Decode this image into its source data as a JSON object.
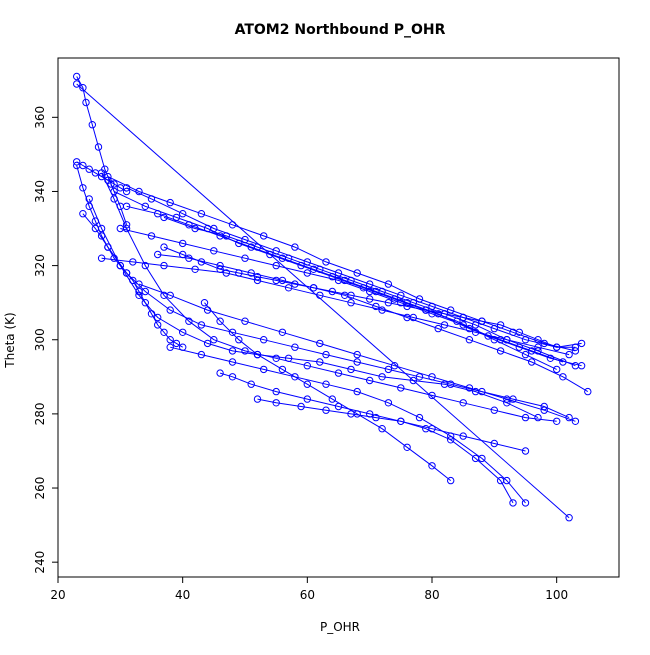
{
  "chart_data": {
    "type": "scatter",
    "title": "ATOM2 Northbound P_OHR",
    "xlabel": "P_OHR",
    "ylabel": "Theta (K)",
    "xlim": [
      20,
      110
    ],
    "ylim": [
      236,
      376
    ],
    "x_ticks": [
      20,
      40,
      60,
      80,
      100
    ],
    "y_ticks": [
      240,
      260,
      280,
      300,
      320,
      340,
      360
    ],
    "x_tick_labels": [
      "20",
      "40",
      "60",
      "80",
      "100"
    ],
    "y_tick_labels": [
      "240",
      "260",
      "280",
      "300",
      "320",
      "340",
      "360"
    ],
    "grid": false,
    "legend": "none",
    "color": "#0000ff",
    "marker": "open-circle",
    "series": [
      {
        "x": [
          23,
          24,
          24.5,
          25.5,
          26.5,
          27.5,
          28.5,
          30,
          31
        ],
        "y": [
          371,
          368,
          364,
          358,
          352,
          346,
          342,
          336,
          331
        ]
      },
      {
        "x": [
          23,
          102
        ],
        "y": [
          369,
          252
        ]
      },
      {
        "x": [
          23,
          24,
          25,
          26,
          27,
          28,
          29,
          30,
          31
        ],
        "y": [
          348,
          347,
          346,
          345,
          344,
          343,
          342,
          341,
          340
        ]
      },
      {
        "x": [
          31,
          35,
          40,
          45,
          50,
          55,
          60,
          65,
          70,
          75,
          80,
          85,
          90,
          95,
          100,
          103
        ],
        "y": [
          341,
          338,
          334,
          330,
          327,
          324,
          321,
          318,
          315,
          312,
          309,
          306,
          303,
          300,
          298,
          298
        ]
      },
      {
        "x": [
          28,
          33,
          38,
          43,
          48,
          53,
          58,
          63,
          68,
          73,
          78,
          83,
          88,
          93,
          98,
          103
        ],
        "y": [
          344,
          340,
          337,
          334,
          331,
          328,
          325,
          321,
          318,
          315,
          311,
          308,
          305,
          302,
          299,
          297
        ]
      },
      {
        "x": [
          29,
          34,
          39,
          44,
          49,
          54,
          59,
          64,
          69,
          74,
          79,
          84,
          89,
          94,
          99,
          104
        ],
        "y": [
          340,
          336,
          333,
          330,
          326,
          323,
          320,
          317,
          314,
          311,
          308,
          305,
          301,
          298,
          295,
          293
        ]
      },
      {
        "x": [
          27,
          32,
          37,
          42,
          47,
          52,
          57,
          62,
          67,
          72,
          77,
          82,
          87,
          92,
          97,
          102
        ],
        "y": [
          322,
          321,
          320,
          319,
          318,
          316,
          314,
          312,
          310,
          308,
          306,
          304,
          302,
          300,
          298,
          296
        ]
      },
      {
        "x": [
          36,
          41,
          46,
          51,
          56,
          61,
          66,
          71,
          76,
          81,
          86,
          91,
          96,
          101,
          105
        ],
        "y": [
          323,
          322,
          320,
          318,
          316,
          314,
          312,
          309,
          306,
          303,
          300,
          297,
          294,
          290,
          286
        ]
      },
      {
        "x": [
          30,
          35,
          40,
          45,
          50,
          55,
          60,
          65,
          70,
          75,
          80,
          85,
          90,
          95,
          100
        ],
        "y": [
          330,
          328,
          326,
          324,
          322,
          320,
          318,
          316,
          313,
          310,
          307,
          304,
          300,
          296,
          292
        ]
      },
      {
        "x": [
          37,
          42,
          47,
          52,
          57,
          62,
          67,
          72,
          77,
          82,
          87,
          92,
          97,
          103
        ],
        "y": [
          333,
          330,
          328,
          325,
          322,
          319,
          316,
          313,
          310,
          307,
          304,
          300,
          297,
          293
        ]
      },
      {
        "x": [
          31,
          36,
          41,
          46,
          51,
          56,
          61,
          66,
          71,
          76,
          81,
          86,
          91,
          96,
          101
        ],
        "y": [
          336,
          334,
          331,
          328,
          325,
          322,
          319,
          316,
          313,
          310,
          307,
          303,
          300,
          297,
          294
        ]
      },
      {
        "x": [
          25,
          27,
          30,
          33,
          36,
          40,
          44,
          48,
          52,
          57,
          62,
          67,
          72,
          77,
          82,
          87,
          92,
          97
        ],
        "y": [
          338,
          330,
          320,
          312,
          306,
          302,
          299,
          297,
          296,
          295,
          294,
          292,
          290,
          289,
          288,
          286,
          283,
          279
        ]
      },
      {
        "x": [
          24,
          26,
          28,
          31,
          34,
          38,
          43,
          48,
          53,
          58,
          63,
          68,
          73,
          78,
          83,
          88,
          93,
          98,
          102
        ],
        "y": [
          334,
          330,
          325,
          318,
          313,
          308,
          304,
          302,
          300,
          298,
          296,
          294,
          292,
          290,
          288,
          286,
          284,
          282,
          279
        ]
      },
      {
        "x": [
          27,
          29,
          31,
          34,
          37,
          41,
          45,
          50,
          55,
          60,
          65,
          70,
          75,
          80,
          85,
          90,
          95,
          100
        ],
        "y": [
          345,
          338,
          330,
          320,
          312,
          305,
          300,
          297,
          295,
          293,
          291,
          289,
          287,
          285,
          283,
          281,
          279,
          278
        ]
      },
      {
        "x": [
          33,
          38,
          44,
          50,
          56,
          62,
          68,
          74,
          80,
          86,
          92,
          98,
          103
        ],
        "y": [
          315,
          312,
          308,
          305,
          302,
          299,
          296,
          293,
          290,
          287,
          284,
          281,
          278
        ]
      },
      {
        "x": [
          43.5,
          46,
          49,
          52,
          56,
          60,
          64,
          68,
          72,
          76,
          80,
          83
        ],
        "y": [
          310,
          305,
          300,
          296,
          292,
          288,
          284,
          280,
          276,
          271,
          266,
          262
        ]
      },
      {
        "x": [
          38,
          43,
          48,
          53,
          58,
          63,
          68,
          73,
          78,
          83,
          88,
          92,
          95
        ],
        "y": [
          298,
          296,
          294,
          292,
          290,
          288,
          286,
          283,
          279,
          274,
          268,
          262,
          256
        ]
      },
      {
        "x": [
          46,
          48,
          51,
          55,
          60,
          65,
          70,
          75,
          80,
          85,
          90,
          95
        ],
        "y": [
          291,
          290,
          288,
          286,
          284,
          282,
          280,
          278,
          276,
          274,
          272,
          270
        ]
      },
      {
        "x": [
          52,
          55,
          59,
          63,
          67,
          71,
          75,
          79,
          83,
          87,
          91,
          93
        ],
        "y": [
          284,
          283,
          282,
          281,
          280,
          279,
          278,
          276,
          273,
          268,
          262,
          256
        ]
      },
      {
        "x": [
          23,
          24,
          25,
          26,
          27,
          28,
          29,
          30,
          31,
          32,
          33,
          34,
          35,
          36,
          37,
          38,
          39,
          40
        ],
        "y": [
          347,
          341,
          336,
          332,
          328,
          325,
          322,
          320,
          318,
          316,
          313,
          310,
          307,
          304,
          302,
          300,
          299,
          298
        ]
      },
      {
        "x": [
          37,
          40,
          43,
          46,
          49,
          52,
          55,
          58,
          61,
          64,
          67,
          70,
          73,
          76,
          79,
          82,
          85,
          88,
          91,
          94,
          97,
          100,
          104
        ],
        "y": [
          325,
          323,
          321,
          319,
          318,
          317,
          316,
          315,
          314,
          313,
          312,
          311,
          310,
          309,
          308,
          307,
          306,
          305,
          304,
          302,
          300,
          298,
          299
        ]
      }
    ]
  }
}
